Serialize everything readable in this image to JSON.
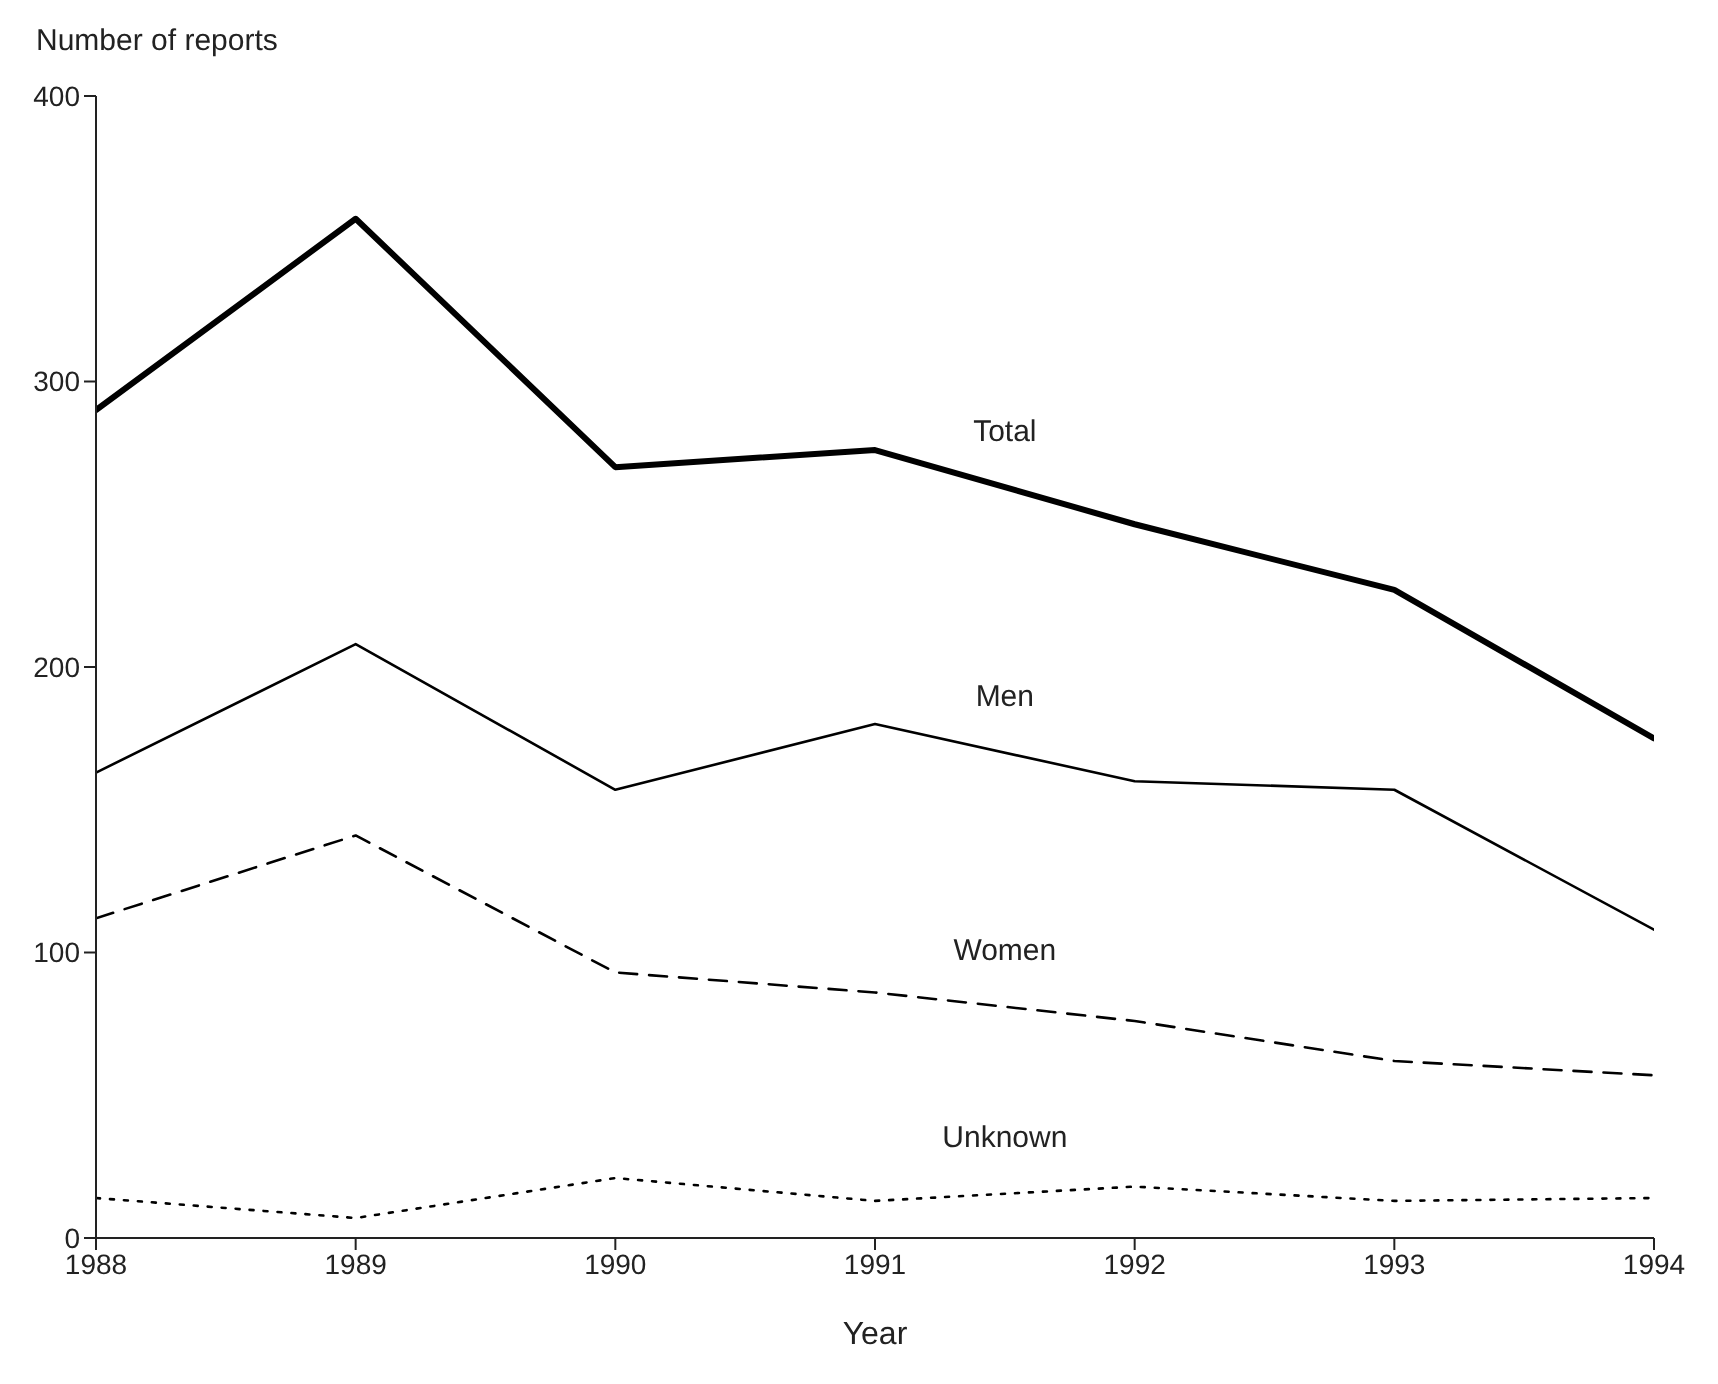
{
  "chart_data": {
    "type": "line",
    "xlabel": "Year",
    "ylabel": "Number of reports",
    "x": [
      1988,
      1989,
      1990,
      1991,
      1992,
      1993,
      1994
    ],
    "series": [
      {
        "name": "Total",
        "color": "#000000",
        "line_style": "solid",
        "values": [
          290,
          357,
          270,
          276,
          250,
          227,
          175
        ]
      },
      {
        "name": "Men",
        "color": "#000000",
        "line_style": "solid",
        "values": [
          163,
          208,
          157,
          180,
          160,
          157,
          108
        ]
      },
      {
        "name": "Women",
        "color": "#000000",
        "line_style": "dashed",
        "values": [
          112,
          141,
          93,
          86,
          76,
          62,
          57
        ]
      },
      {
        "name": "Unknown",
        "color": "#000000",
        "line_style": "dotted",
        "values": [
          14,
          7,
          21,
          13,
          18,
          13,
          14
        ]
      }
    ],
    "xlim": [
      1988,
      1994
    ],
    "xticks": [
      1988,
      1989,
      1990,
      1991,
      1992,
      1993,
      1994
    ],
    "ylim": [
      0,
      400
    ],
    "yticks": [
      0,
      100,
      200,
      300,
      400
    ],
    "grid": false,
    "legend": false,
    "marker": "none"
  }
}
